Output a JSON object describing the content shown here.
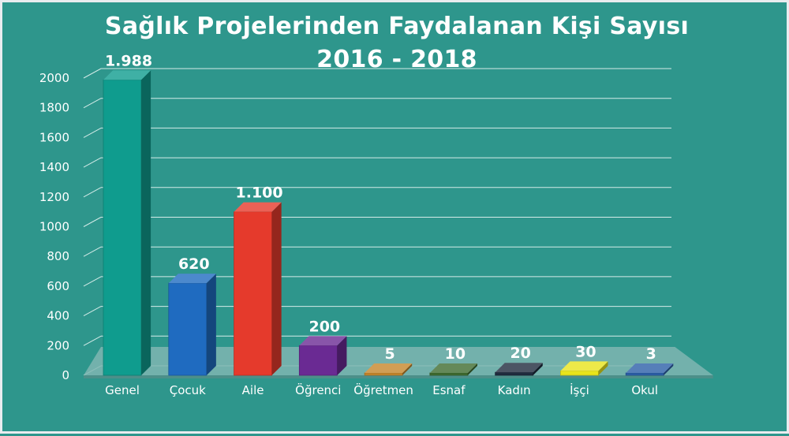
{
  "chart_data": {
    "type": "bar",
    "title": "Sağlık Projelerinden Faydalanan Kişi Sayısı",
    "subtitle": "2016 - 2018",
    "categories": [
      "Genel",
      "Çocuk",
      "Aile",
      "Öğrenci",
      "Öğretmen",
      "Esnaf",
      "Kadın",
      "İşçi",
      "Okul"
    ],
    "values": [
      1988,
      620,
      1100,
      200,
      5,
      10,
      20,
      30,
      3
    ],
    "data_labels": [
      "1.988",
      "620",
      "1.100",
      "200",
      "5",
      "10",
      "20",
      "30",
      "3"
    ],
    "y_ticks": [
      0,
      200,
      400,
      600,
      800,
      1000,
      1200,
      1400,
      1600,
      1800,
      2000
    ],
    "ylim": [
      0,
      2000
    ],
    "grid": true,
    "legend": "none",
    "style": "3d-bars",
    "colors": [
      "#0f9c8e",
      "#1f6bc0",
      "#e53a2c",
      "#6a2a93",
      "#c6862b",
      "#3f6b2f",
      "#1f2b3d",
      "#e8e41b",
      "#2c5fa8"
    ]
  },
  "colors": {
    "background": "#2e968c",
    "text": "#ffffff",
    "gridline": "#d4ebe8"
  }
}
